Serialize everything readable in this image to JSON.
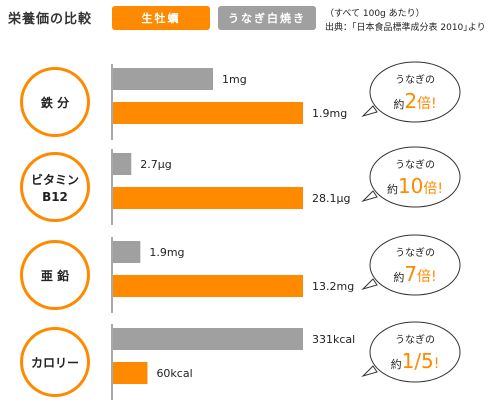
{
  "header": {
    "title": "栄養価の比較",
    "note1": "（すべて 100g あたり）",
    "note2": "出典：｢日本食品標準成分表 2010｣より"
  },
  "colors": {
    "oyster": "#ff8a00",
    "eel": "#a0a0a0",
    "circle": "#ff8a00",
    "axis": "#555555"
  },
  "chart_data": {
    "type": "bar",
    "orientation": "horizontal",
    "series": [
      {
        "name": "生牡蠣",
        "color": "#ff8a00"
      },
      {
        "name": "うなぎ白焼き",
        "color": "#a0a0a0"
      }
    ],
    "groups": [
      {
        "label": "鉄 分",
        "eel": {
          "value": 1,
          "unit": "mg",
          "display": "1mg"
        },
        "oyster": {
          "value": 1.9,
          "unit": "mg",
          "display": "1.9mg"
        },
        "bubble": {
          "pre": "うなぎの",
          "mult": "約",
          "num": "2",
          "suffix": "倍!"
        }
      },
      {
        "label": "ビタミン B12",
        "eel": {
          "value": 2.7,
          "unit": "μg",
          "display": "2.7μg"
        },
        "oyster": {
          "value": 28.1,
          "unit": "μg",
          "display": "28.1μg"
        },
        "bubble": {
          "pre": "うなぎの",
          "mult": "約",
          "num": "10",
          "suffix": "倍!"
        }
      },
      {
        "label": "亜 鉛",
        "eel": {
          "value": 1.9,
          "unit": "mg",
          "display": "1.9mg"
        },
        "oyster": {
          "value": 13.2,
          "unit": "mg",
          "display": "13.2mg"
        },
        "bubble": {
          "pre": "うなぎの",
          "mult": "約",
          "num": "7",
          "suffix": "倍!"
        }
      },
      {
        "label": "カロリー",
        "eel": {
          "value": 331,
          "unit": "kcal",
          "display": "331kcal"
        },
        "oyster": {
          "value": 60,
          "unit": "kcal",
          "display": "60kcal"
        },
        "bubble": {
          "pre": "うなぎの",
          "mult": "約",
          "num": "1/5",
          "suffix": "!"
        }
      }
    ]
  }
}
